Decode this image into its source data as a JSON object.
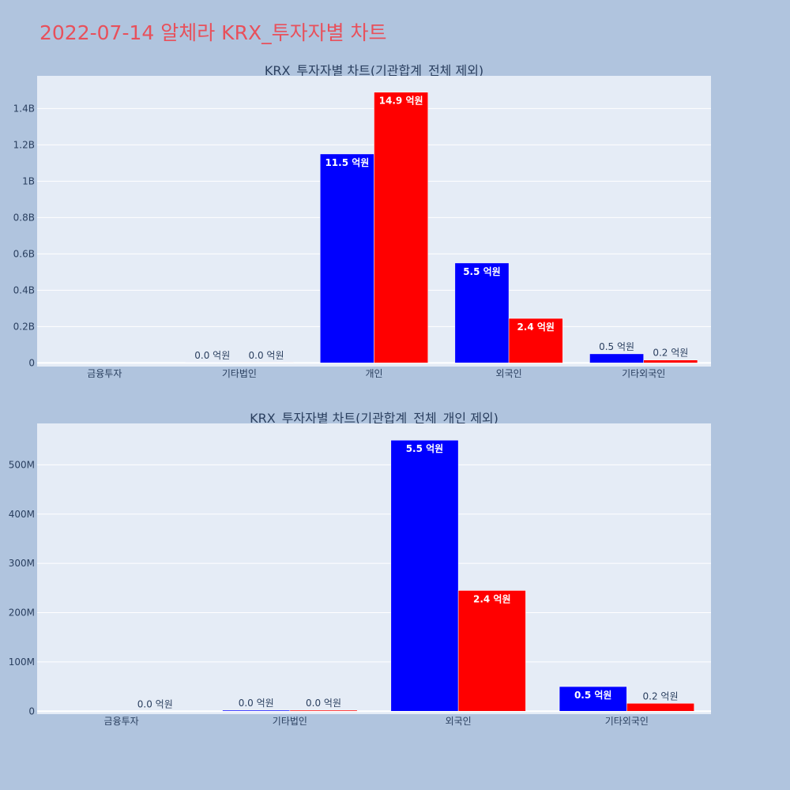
{
  "title": "2022-07-14 알체라 KRX_투자자별 차트",
  "colors": {
    "background": "#b0c4de",
    "plot_bg": "#e5ecf6",
    "title": "#e8505b",
    "series_a": "#0000ff",
    "series_b": "#ff0000"
  },
  "chart_data": [
    {
      "type": "bar",
      "title": "KRX_투자자별 차트(기관합계_전체 제외)",
      "categories": [
        "금융투자",
        "기타법인",
        "개인",
        "외국인",
        "기타외국인"
      ],
      "series": [
        {
          "color": "#0000ff",
          "values": [
            0,
            2000000,
            1150000000,
            550000000,
            50000000
          ],
          "labels": [
            "",
            "0.0 억원",
            "11.5 억원",
            "5.5 억원",
            "0.5 억원"
          ]
        },
        {
          "color": "#ff0000",
          "values": [
            0,
            2000000,
            1490000000,
            245000000,
            16000000
          ],
          "labels": [
            "",
            "0.0 억원",
            "14.9 억원",
            "2.4 억원",
            "0.2 억원"
          ]
        }
      ],
      "ylim": [
        -20000000,
        1580000000
      ],
      "yticks": [
        0,
        200000000,
        400000000,
        600000000,
        800000000,
        1000000000,
        1200000000,
        1400000000
      ],
      "ytick_labels": [
        "0",
        "0.2B",
        "0.4B",
        "0.6B",
        "0.8B",
        "1B",
        "1.2B",
        "1.4B"
      ],
      "grid": true,
      "legend": "none"
    },
    {
      "type": "bar",
      "title": "KRX_투자자별 차트(기관합계_전체_개인 제외)",
      "categories": [
        "금융투자",
        "기타법인",
        "외국인",
        "기타외국인"
      ],
      "series": [
        {
          "color": "#0000ff",
          "values": [
            0,
            2000000,
            550000000,
            50000000
          ],
          "labels": [
            "",
            "0.0 억원",
            "5.5 억원",
            "0.5 억원"
          ]
        },
        {
          "color": "#ff0000",
          "values": [
            0,
            2000000,
            245000000,
            16000000
          ],
          "labels": [
            "0.0 억원",
            "0.0 억원",
            "2.4 억원",
            "0.2 억원"
          ]
        }
      ],
      "ylim": [
        -6000000,
        584000000
      ],
      "yticks": [
        0,
        100000000,
        200000000,
        300000000,
        400000000,
        500000000
      ],
      "ytick_labels": [
        "0",
        "100M",
        "200M",
        "300M",
        "400M",
        "500M"
      ],
      "grid": true,
      "legend": "none"
    }
  ]
}
